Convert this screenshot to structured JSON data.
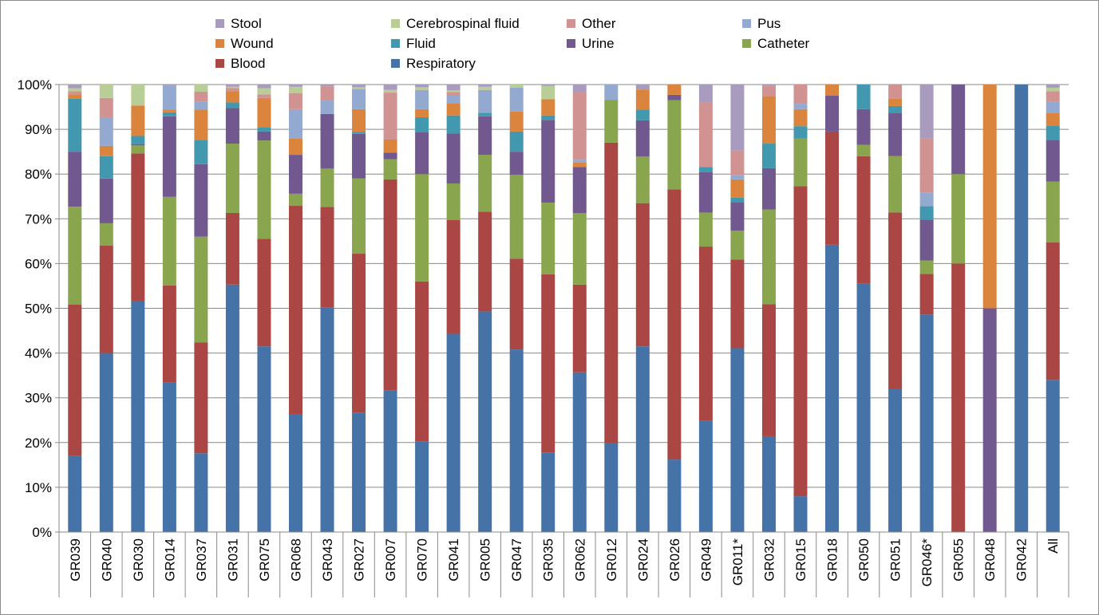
{
  "chart_data": {
    "type": "bar",
    "stacked": true,
    "normalized": true,
    "grid": true,
    "legend_position": "top",
    "ylim": [
      0,
      100
    ],
    "y_ticks": [
      "0%",
      "10%",
      "20%",
      "30%",
      "40%",
      "50%",
      "60%",
      "70%",
      "80%",
      "90%",
      "100%"
    ],
    "categories": [
      "GR039",
      "GR040",
      "GR030",
      "GR014",
      "GR037",
      "GR031",
      "GR075",
      "GR068",
      "GR043",
      "GR027",
      "GR007",
      "GR070",
      "GR041",
      "GR005",
      "GR047",
      "GR035",
      "GR062",
      "GR012",
      "GR024",
      "GR026",
      "GR049",
      "GR011*",
      "GR032",
      "GR015",
      "GR018",
      "GR050",
      "GR051",
      "GR046*",
      "GR055",
      "GR048",
      "GR042",
      "All"
    ],
    "series": [
      {
        "name": "Respiratory",
        "color": "#4572A7",
        "values": [
          17,
          40,
          51.7,
          33.5,
          17.6,
          55.3,
          41.5,
          26.3,
          50.5,
          26.7,
          31.6,
          20.2,
          44.3,
          49.3,
          40.8,
          17.8,
          35.7,
          19.8,
          41.5,
          16.2,
          24.8,
          41.5,
          21.4,
          8,
          64.2,
          55.5,
          32,
          48.6,
          0,
          0,
          100,
          34
        ]
      },
      {
        "name": "Blood",
        "color": "#AA4643",
        "values": [
          33.8,
          24,
          32.9,
          21.6,
          24.8,
          16,
          24,
          46.6,
          22.6,
          35.5,
          47.2,
          35.8,
          25.4,
          22.3,
          20.3,
          39.8,
          19.6,
          67.2,
          32,
          60.4,
          39,
          20,
          29.5,
          69.3,
          25.3,
          28.5,
          39.4,
          9.1,
          60,
          0,
          0,
          30.7
        ]
      },
      {
        "name": "Catheter",
        "color": "#89A54E",
        "values": [
          21.9,
          5,
          1.8,
          19.8,
          23.6,
          15.5,
          22,
          2.7,
          8.6,
          16.8,
          4.5,
          24,
          8.2,
          12.7,
          18.7,
          16,
          16,
          9.6,
          10.4,
          19.9,
          7.6,
          6.5,
          21.2,
          10.6,
          0,
          2.5,
          12.6,
          3,
          20,
          0,
          0,
          13.6
        ]
      },
      {
        "name": "Urine",
        "color": "#71588F",
        "values": [
          12.3,
          10,
          0.3,
          18,
          16.2,
          8,
          2,
          8.7,
          12.3,
          10,
          1.5,
          9.3,
          11.2,
          8.6,
          5.2,
          18.5,
          10.3,
          0,
          8.1,
          1.2,
          9,
          6.5,
          9.2,
          0,
          8,
          8,
          9.7,
          9.1,
          20,
          50,
          0,
          9.3
        ]
      },
      {
        "name": "Fluid",
        "color": "#4198AF",
        "values": [
          11.8,
          5,
          1.8,
          0.9,
          5.4,
          1.2,
          1,
          0,
          0,
          0.4,
          0,
          3.4,
          4,
          0.8,
          4.5,
          1,
          0,
          0,
          2.4,
          0,
          1.2,
          1,
          5.5,
          2.8,
          0,
          5.5,
          1.5,
          3,
          0,
          0,
          0,
          3.2
        ]
      },
      {
        "name": "Wound",
        "color": "#DB843D",
        "values": [
          1,
          2.3,
          6.8,
          0.6,
          6.8,
          2.5,
          6.5,
          3.7,
          0,
          5.1,
          2.9,
          1.8,
          2.7,
          0,
          4.5,
          3.6,
          1,
          0,
          4.5,
          2.3,
          0,
          4.1,
          10.6,
          3.8,
          2.5,
          0,
          1.6,
          0,
          0,
          50,
          0,
          2.9
        ]
      },
      {
        "name": "Pus",
        "color": "#93A9CF",
        "values": [
          0,
          6.4,
          0,
          5.3,
          1.8,
          0,
          0,
          6.5,
          3,
          4.5,
          0,
          4.3,
          1.7,
          5.1,
          5.3,
          0,
          0.6,
          3.4,
          0,
          0,
          0,
          1,
          0,
          1.2,
          0,
          0,
          0,
          3.1,
          0,
          0,
          0,
          2.4
        ]
      },
      {
        "name": "Other",
        "color": "#D19392",
        "values": [
          0.7,
          4.3,
          0,
          0,
          2.2,
          0.7,
          0.8,
          3.6,
          3.2,
          0,
          10.5,
          0,
          0.8,
          0,
          0,
          0,
          15.2,
          0,
          0,
          0,
          14.4,
          5.5,
          2.4,
          4.3,
          0,
          0,
          3.2,
          12,
          0,
          0,
          0,
          2.4
        ]
      },
      {
        "name": "Cerebrospinal fluid",
        "color": "#B9CD96",
        "values": [
          0.7,
          3,
          4.7,
          0,
          1.6,
          0.3,
          1.4,
          1.4,
          0,
          0.4,
          0.6,
          0.6,
          0.4,
          0.7,
          0.7,
          3,
          0,
          0,
          0,
          0,
          0,
          0,
          0,
          0,
          0,
          0,
          0,
          0,
          0,
          0,
          0,
          0.8
        ]
      },
      {
        "name": "Stool",
        "color": "#A99BBD",
        "values": [
          0.8,
          0,
          0,
          0.3,
          0,
          0.5,
          0.8,
          0.5,
          0.4,
          0.6,
          1.2,
          0.6,
          1.3,
          0.5,
          0,
          0.3,
          1.6,
          0,
          1.1,
          0,
          4,
          14.9,
          0.2,
          0,
          0,
          0,
          0,
          12.1,
          0,
          0,
          0,
          0.7
        ]
      }
    ],
    "legend_order": [
      "Stool",
      "Cerebrospinal fluid",
      "Other",
      "Pus",
      "Wound",
      "Fluid",
      "Urine",
      "Catheter",
      "Blood",
      "Respiratory"
    ]
  }
}
